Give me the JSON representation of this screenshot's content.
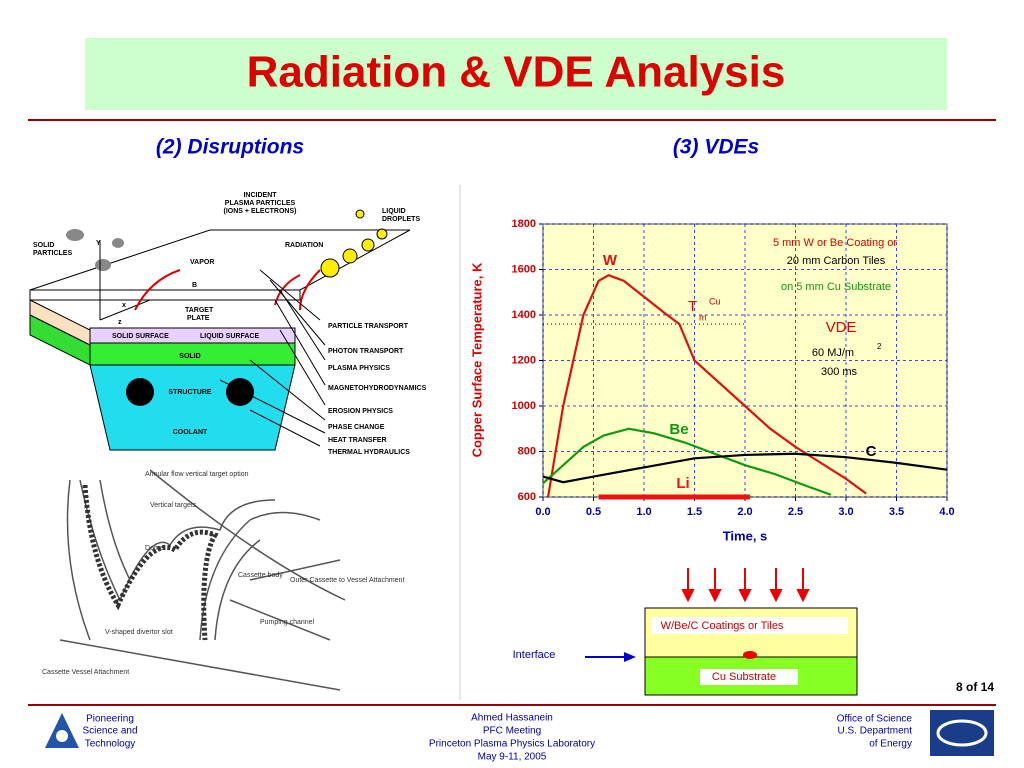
{
  "title": "Radiation & VDE Analysis",
  "left_heading": "(2) Disruptions",
  "right_heading": "(3) VDEs",
  "disruption_diagram": {
    "labels": [
      "INCIDENT",
      "PLASMA PARTICLES",
      "(IONS + ELECTRONS)",
      "LIQUID",
      "DROPLETS",
      "SOLID",
      "PARTICLES",
      "VAPOR",
      "RADIATION",
      "TARGET",
      "PLATE",
      "SOLID SURFACE",
      "LIQUID SURFACE",
      "SOLID",
      "STRUCTURE",
      "COOLANT",
      "Y",
      "B",
      "x",
      "z"
    ],
    "processes": [
      "PARTICLE TRANSPORT",
      "PHOTON TRANSPORT",
      "PLASMA PHYSICS",
      "MAGNETOHYDRODYNAMICS",
      "EROSION PHYSICS",
      "PHASE CHANGE",
      "HEAT TRANSFER",
      "THERMAL HYDRAULICS"
    ]
  },
  "divertor_drawing": {
    "labels": [
      "Annular flow vertical target option",
      "Vertical targets",
      "Dome",
      "Cassette body",
      "Outer Cassette to Vessel Attachment",
      "Pumping channel",
      "V-shaped divertor slot",
      "Cassette Vessel Attachment"
    ]
  },
  "chart_data": {
    "type": "line",
    "ylabel": "Copper Surface Temperature, K",
    "xlabel": "Time, s",
    "xlim": [
      0,
      4
    ],
    "ylim": [
      600,
      1800
    ],
    "xticks": [
      {
        "value": 0,
        "label": "0.0"
      },
      {
        "value": 0.5,
        "label": "0.5"
      },
      {
        "value": 1,
        "label": "1.0"
      },
      {
        "value": 1.5,
        "label": "1.5"
      },
      {
        "value": 2,
        "label": "2.0"
      },
      {
        "value": 2.5,
        "label": "2.5"
      },
      {
        "value": 3,
        "label": "3.0"
      },
      {
        "value": 3.5,
        "label": "3.5"
      },
      {
        "value": 4,
        "label": "4.0"
      }
    ],
    "yticks": [
      600,
      800,
      1000,
      1200,
      1400,
      1600,
      1800
    ],
    "grid": true,
    "series": [
      {
        "name": "W",
        "color": "#dd1111",
        "x": [
          0.05,
          0.2,
          0.4,
          0.55,
          0.65,
          0.8,
          1.0,
          1.2,
          1.35,
          1.5,
          1.75,
          2.0,
          2.25,
          2.5,
          2.75,
          3.0,
          3.2
        ],
        "values": [
          600,
          1000,
          1400,
          1550,
          1575,
          1550,
          1480,
          1410,
          1360,
          1200,
          1100,
          1000,
          900,
          820,
          750,
          680,
          615
        ]
      },
      {
        "name": "Be",
        "color": "#119911",
        "x": [
          0,
          0.2,
          0.4,
          0.6,
          0.85,
          1.1,
          1.4,
          1.7,
          2.0,
          2.3,
          2.6,
          2.85
        ],
        "values": [
          660,
          740,
          820,
          870,
          900,
          880,
          840,
          790,
          740,
          700,
          650,
          610
        ]
      },
      {
        "name": "C",
        "color": "#000000",
        "x": [
          0,
          0.2,
          0.5,
          1.0,
          1.5,
          2.0,
          2.5,
          3.0,
          3.5,
          4.0
        ],
        "values": [
          690,
          665,
          690,
          730,
          770,
          785,
          790,
          775,
          750,
          720
        ]
      },
      {
        "name": "Li",
        "color": "#ee1111",
        "x": [
          0.55,
          2.05
        ],
        "values": [
          600,
          600
        ]
      }
    ],
    "melting_line": {
      "value": 1360,
      "x": [
        0,
        2
      ]
    },
    "annotations": [
      "5 mm W or Be Coating or",
      "20 mm Carbon Tiles",
      "on 5 mm Cu Substrate",
      "T",
      "m",
      "Cu",
      "VDE",
      "60 MJ/m",
      "2",
      "300 ms"
    ]
  },
  "schematic": {
    "top_layer": "W/Be/C Coatings or Tiles",
    "bottom_layer": "Cu Substrate",
    "interface": "Interface"
  },
  "page_number": "8 of 14",
  "footer": {
    "left": [
      "Pioneering",
      "Science and",
      "Technology"
    ],
    "center": [
      "Ahmed Hassanein",
      "PFC Meeting",
      "Princeton Plasma Physics Laboratory",
      "May 9-11, 2005"
    ],
    "right": [
      "Office of  Science",
      "U.S. Department",
      "of Energy"
    ]
  }
}
